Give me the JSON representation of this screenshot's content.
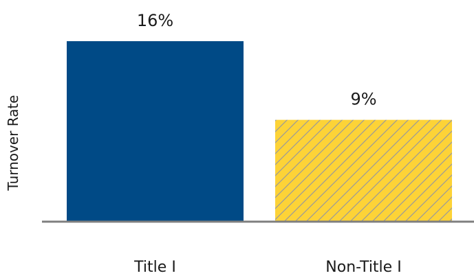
{
  "chart_data": {
    "type": "bar",
    "title": "",
    "xlabel": "",
    "ylabel": "Turnover Rate",
    "categories": [
      "Title I",
      "Non-Title I"
    ],
    "values": [
      16,
      9
    ],
    "value_labels": [
      "16%",
      "9%"
    ],
    "unit": "%",
    "ylim": [
      0,
      16
    ],
    "grid": false,
    "legend": "none",
    "colors": {
      "title_i": "#004a86",
      "non_title_i": "#fdd337",
      "hatch": "#9a9a9a",
      "axis": "#7f7f7f",
      "text": "#1a1a1a"
    }
  }
}
